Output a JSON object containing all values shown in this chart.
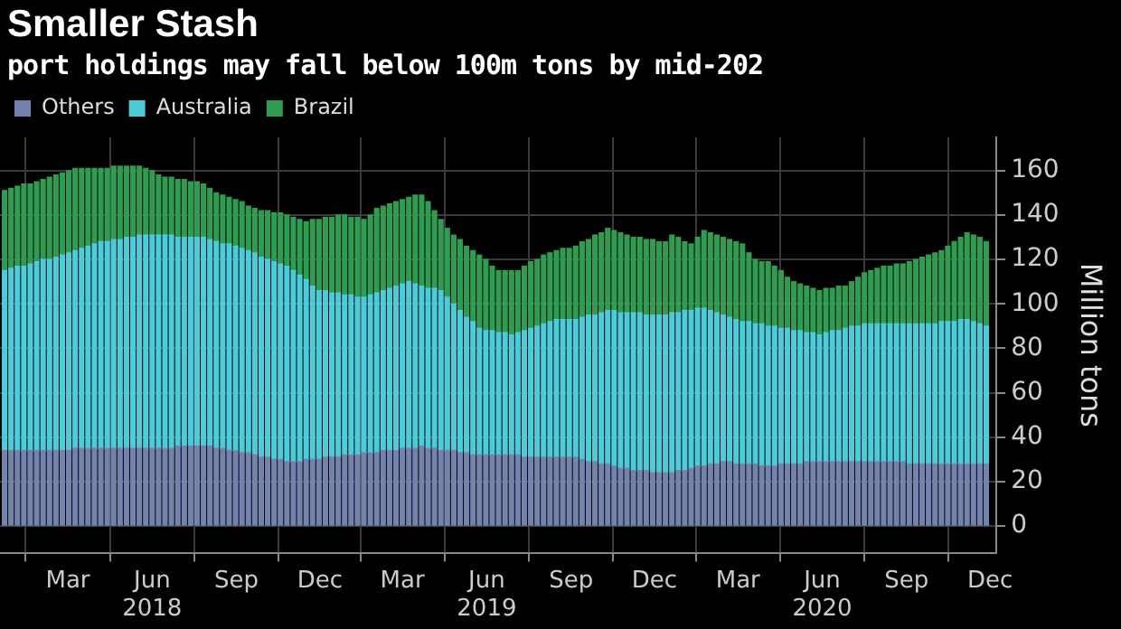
{
  "chart_data": {
    "type": "bar",
    "title": "Smaller Stash",
    "subtitle": "port holdings may fall below 100m tons by mid-202",
    "ylabel": "Million tons",
    "stacked": true,
    "grid": true,
    "legend": "top left",
    "x": [
      "2017-12-22",
      "2017-12-29",
      "2018-01-05",
      "2018-01-12",
      "2018-01-19",
      "2018-01-26",
      "2018-02-02",
      "2018-02-09",
      "2018-02-16",
      "2018-02-23",
      "2018-03-02",
      "2018-03-09",
      "2018-03-16",
      "2018-03-23",
      "2018-03-30",
      "2018-04-06",
      "2018-04-13",
      "2018-04-20",
      "2018-04-27",
      "2018-05-04",
      "2018-05-11",
      "2018-05-18",
      "2018-05-25",
      "2018-06-01",
      "2018-06-08",
      "2018-06-15",
      "2018-06-22",
      "2018-06-29",
      "2018-07-06",
      "2018-07-13",
      "2018-07-20",
      "2018-07-27",
      "2018-08-03",
      "2018-08-10",
      "2018-08-17",
      "2018-08-24",
      "2018-08-31",
      "2018-09-07",
      "2018-09-14",
      "2018-09-21",
      "2018-09-28",
      "2018-10-05",
      "2018-10-12",
      "2018-10-19",
      "2018-10-26",
      "2018-11-02",
      "2018-11-09",
      "2018-11-16",
      "2018-11-23",
      "2018-11-30",
      "2018-12-07",
      "2018-12-14",
      "2018-12-21",
      "2018-12-28",
      "2019-01-04",
      "2019-01-11",
      "2019-01-18",
      "2019-01-25",
      "2019-02-01",
      "2019-02-08",
      "2019-02-15",
      "2019-02-22",
      "2019-03-01",
      "2019-03-08",
      "2019-03-15",
      "2019-03-22",
      "2019-03-29",
      "2019-04-05",
      "2019-04-12",
      "2019-04-19",
      "2019-04-26",
      "2019-05-03",
      "2019-05-10",
      "2019-05-17",
      "2019-05-24",
      "2019-05-31",
      "2019-06-07",
      "2019-06-14",
      "2019-06-21",
      "2019-06-28",
      "2019-07-05",
      "2019-07-12",
      "2019-07-19",
      "2019-07-26",
      "2019-08-02",
      "2019-08-09",
      "2019-08-16",
      "2019-08-23",
      "2019-08-30",
      "2019-09-06",
      "2019-09-13",
      "2019-09-20",
      "2019-09-27",
      "2019-10-04",
      "2019-10-11",
      "2019-10-18",
      "2019-10-25",
      "2019-11-01",
      "2019-11-08",
      "2019-11-15",
      "2019-11-22",
      "2019-11-29",
      "2019-12-06",
      "2019-12-13",
      "2019-12-20",
      "2019-12-27",
      "2020-01-03",
      "2020-01-10",
      "2020-01-17",
      "2020-01-24",
      "2020-01-31",
      "2020-02-07",
      "2020-02-14",
      "2020-02-21",
      "2020-02-28",
      "2020-03-06",
      "2020-03-13",
      "2020-03-20",
      "2020-03-27",
      "2020-04-03",
      "2020-04-10",
      "2020-04-17",
      "2020-04-24",
      "2020-05-01",
      "2020-05-08",
      "2020-05-15",
      "2020-05-22",
      "2020-05-29",
      "2020-06-05",
      "2020-06-12",
      "2020-06-19",
      "2020-06-26",
      "2020-07-03",
      "2020-07-10",
      "2020-07-17",
      "2020-07-24",
      "2020-07-31",
      "2020-08-07",
      "2020-08-14",
      "2020-08-21",
      "2020-08-28",
      "2020-09-04",
      "2020-09-11",
      "2020-09-18",
      "2020-09-25",
      "2020-10-02",
      "2020-10-09",
      "2020-10-16",
      "2020-10-23",
      "2020-10-30",
      "2020-11-06",
      "2020-11-13",
      "2020-11-20",
      "2020-11-27"
    ],
    "xlim": [
      "2017-12-17",
      "2020-12-08"
    ],
    "xticks": [
      {
        "value": "2018-03-01",
        "label": "Mar"
      },
      {
        "value": "2018-06-01",
        "label": "Jun\n2018"
      },
      {
        "value": "2018-09-01",
        "label": "Sep"
      },
      {
        "value": "2018-12-01",
        "label": "Dec"
      },
      {
        "value": "2019-03-01",
        "label": "Mar"
      },
      {
        "value": "2019-06-01",
        "label": "Jun\n2019"
      },
      {
        "value": "2019-09-01",
        "label": "Sep"
      },
      {
        "value": "2019-12-01",
        "label": "Dec"
      },
      {
        "value": "2020-03-01",
        "label": "Mar"
      },
      {
        "value": "2020-06-01",
        "label": "Jun\n2020"
      },
      {
        "value": "2020-09-01",
        "label": "Sep"
      },
      {
        "value": "2020-12-01",
        "label": "Dec"
      }
    ],
    "ylim": [
      -12,
      175
    ],
    "yticks": [
      0,
      20,
      40,
      60,
      80,
      100,
      120,
      140,
      160
    ],
    "series": [
      {
        "name": "Others",
        "color": "#7383ad",
        "values": [
          34,
          34,
          34,
          34,
          34,
          34,
          34,
          34,
          34,
          34,
          34,
          35,
          35,
          35,
          35,
          35,
          35,
          35,
          35,
          35,
          35,
          35,
          35,
          35,
          35,
          35,
          35,
          36,
          36,
          36,
          36,
          36,
          36,
          35,
          35,
          34,
          34,
          33,
          33,
          32,
          31,
          31,
          30,
          30,
          29,
          29,
          29,
          30,
          30,
          30,
          31,
          31,
          31,
          32,
          32,
          32,
          33,
          33,
          33,
          34,
          34,
          34,
          35,
          35,
          35,
          36,
          35,
          35,
          34,
          34,
          34,
          33,
          33,
          32,
          32,
          32,
          32,
          32,
          32,
          32,
          32,
          31,
          31,
          31,
          31,
          31,
          31,
          31,
          31,
          31,
          30,
          29,
          29,
          28,
          28,
          27,
          26,
          26,
          25,
          25,
          25,
          24,
          24,
          24,
          24,
          25,
          25,
          26,
          27,
          27,
          28,
          28,
          29,
          29,
          28,
          28,
          28,
          28,
          27,
          27,
          27,
          28,
          28,
          28,
          28,
          29,
          29,
          29,
          29,
          29,
          29,
          29,
          29,
          29,
          29,
          29,
          29,
          29,
          29,
          29,
          29,
          28,
          28,
          28,
          28,
          28,
          28,
          28,
          28,
          28,
          28,
          28,
          28,
          28
        ]
      },
      {
        "name": "Australia",
        "color": "#4ecbd8",
        "values": [
          81,
          82,
          83,
          83,
          84,
          85,
          86,
          86,
          87,
          88,
          89,
          89,
          90,
          91,
          92,
          93,
          93,
          94,
          94,
          95,
          95,
          96,
          96,
          96,
          96,
          96,
          96,
          94,
          94,
          94,
          94,
          94,
          93,
          93,
          92,
          93,
          92,
          92,
          91,
          91,
          90,
          89,
          89,
          88,
          88,
          86,
          84,
          81,
          78,
          76,
          75,
          74,
          74,
          72,
          72,
          71,
          70,
          71,
          72,
          72,
          73,
          74,
          74,
          75,
          74,
          72,
          72,
          72,
          72,
          69,
          66,
          64,
          61,
          60,
          57,
          56,
          56,
          55,
          55,
          54,
          55,
          57,
          58,
          59,
          60,
          61,
          62,
          62,
          62,
          62,
          64,
          66,
          66,
          68,
          69,
          70,
          70,
          70,
          71,
          71,
          70,
          71,
          71,
          71,
          72,
          71,
          72,
          71,
          71,
          71,
          69,
          68,
          66,
          65,
          65,
          64,
          64,
          63,
          64,
          63,
          63,
          61,
          61,
          60,
          60,
          58,
          58,
          57,
          58,
          59,
          59,
          60,
          61,
          61,
          62,
          62,
          62,
          62,
          62,
          62,
          62,
          63,
          63,
          63,
          63,
          63,
          64,
          64,
          64,
          65,
          65,
          64,
          63,
          62
        ]
      },
      {
        "name": "Brazil",
        "color": "#2f9c52",
        "values": [
          36,
          36,
          36,
          37,
          36,
          36,
          36,
          37,
          37,
          37,
          37,
          37,
          36,
          35,
          34,
          33,
          33,
          33,
          33,
          32,
          32,
          31,
          30,
          29,
          27,
          26,
          26,
          26,
          26,
          25,
          25,
          24,
          23,
          22,
          22,
          21,
          21,
          21,
          20,
          20,
          21,
          22,
          22,
          23,
          23,
          24,
          25,
          26,
          30,
          32,
          33,
          34,
          35,
          36,
          35,
          36,
          35,
          36,
          38,
          38,
          38,
          38,
          38,
          38,
          40,
          41,
          39,
          35,
          32,
          31,
          31,
          32,
          32,
          32,
          33,
          32,
          29,
          28,
          28,
          29,
          28,
          29,
          30,
          30,
          31,
          31,
          31,
          32,
          32,
          33,
          34,
          34,
          36,
          36,
          37,
          36,
          36,
          35,
          34,
          34,
          34,
          34,
          33,
          33,
          35,
          34,
          31,
          30,
          32,
          35,
          35,
          35,
          35,
          35,
          35,
          35,
          31,
          29,
          28,
          29,
          27,
          26,
          23,
          22,
          21,
          21,
          20,
          20,
          20,
          19,
          20,
          19,
          20,
          22,
          23,
          24,
          25,
          26,
          26,
          27,
          27,
          28,
          29,
          30,
          31,
          32,
          32,
          34,
          36,
          37,
          39,
          39,
          39,
          38
        ]
      }
    ]
  }
}
